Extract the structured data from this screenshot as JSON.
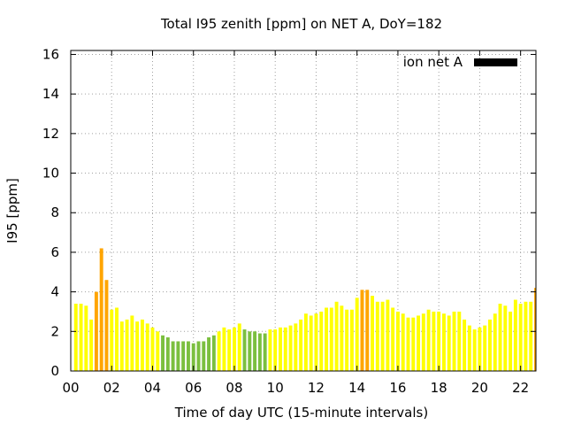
{
  "chart_data": {
    "type": "bar",
    "title": "Total I95 zenith [ppm] on NET A, DoY=182",
    "xlabel": "Time of day UTC (15-minute intervals)",
    "ylabel": "I95 [ppm]",
    "ylim": [
      0,
      16.2
    ],
    "xlim": [
      0,
      22.75
    ],
    "yticks": [
      "0",
      "2",
      "4",
      "6",
      "8",
      "10",
      "12",
      "14",
      "16"
    ],
    "xticks": [
      "00",
      "02",
      "04",
      "06",
      "08",
      "10",
      "12",
      "14",
      "16",
      "18",
      "20",
      "22"
    ],
    "grid": true,
    "legend": {
      "position": "top-right",
      "label": "ion net A",
      "color": "#000000"
    },
    "bar_width_hours": 0.17,
    "colors": {
      "high": "#ffa500",
      "normal": "#ffff00",
      "low": "#7bbf3f"
    },
    "series": [
      {
        "x": [
          0.25,
          0.5,
          0.75,
          1.0,
          1.25,
          1.5,
          1.75,
          2.0,
          2.25,
          2.5,
          2.75,
          3.0,
          3.25,
          3.5,
          3.75,
          4.0,
          4.25,
          4.5,
          4.75,
          5.0,
          5.25,
          5.5,
          5.75,
          6.0,
          6.25,
          6.5,
          6.75,
          7.0,
          7.25,
          7.5,
          7.75,
          8.0,
          8.25,
          8.5,
          8.75,
          9.0,
          9.25,
          9.5,
          9.75,
          10.0,
          10.25,
          10.5,
          10.75,
          11.0,
          11.25,
          11.5,
          11.75,
          12.0,
          12.25,
          12.5,
          12.75,
          13.0,
          13.25,
          13.5,
          13.75,
          14.0,
          14.25,
          14.5,
          14.75,
          15.0,
          15.25,
          15.5,
          15.75,
          16.0,
          16.25,
          16.5,
          16.75,
          17.0,
          17.25,
          17.5,
          17.75,
          18.0,
          18.25,
          18.5,
          18.75,
          19.0,
          19.25,
          19.5,
          19.75,
          20.0,
          20.25,
          20.5,
          20.75,
          21.0,
          21.25,
          21.5,
          21.75,
          22.0,
          22.25,
          22.5,
          22.75
        ],
        "values": [
          3.4,
          3.4,
          3.3,
          2.6,
          4.0,
          6.2,
          4.6,
          3.1,
          3.2,
          2.5,
          2.6,
          2.8,
          2.5,
          2.6,
          2.4,
          2.2,
          2.0,
          1.8,
          1.7,
          1.5,
          1.5,
          1.5,
          1.5,
          1.4,
          1.5,
          1.5,
          1.7,
          1.8,
          2.0,
          2.2,
          2.1,
          2.2,
          2.4,
          2.1,
          2.0,
          2.0,
          1.9,
          1.9,
          2.1,
          2.1,
          2.2,
          2.2,
          2.3,
          2.4,
          2.6,
          2.9,
          2.8,
          2.9,
          3.0,
          3.2,
          3.2,
          3.5,
          3.3,
          3.1,
          3.1,
          3.7,
          4.1,
          4.1,
          3.8,
          3.5,
          3.5,
          3.6,
          3.2,
          3.0,
          2.9,
          2.7,
          2.7,
          2.8,
          2.9,
          3.1,
          3.0,
          3.0,
          2.9,
          2.8,
          3.0,
          3.0,
          2.6,
          2.3,
          2.1,
          2.2,
          2.3,
          2.6,
          2.9,
          3.4,
          3.3,
          3.0,
          3.6,
          3.4,
          3.5,
          3.5,
          4.2
        ],
        "levels": [
          "normal",
          "normal",
          "normal",
          "normal",
          "high",
          "high",
          "high",
          "normal",
          "normal",
          "normal",
          "normal",
          "normal",
          "normal",
          "normal",
          "normal",
          "normal",
          "normal",
          "low",
          "low",
          "low",
          "low",
          "low",
          "low",
          "low",
          "low",
          "low",
          "low",
          "low",
          "normal",
          "normal",
          "normal",
          "normal",
          "normal",
          "low",
          "low",
          "low",
          "low",
          "low",
          "normal",
          "normal",
          "normal",
          "normal",
          "normal",
          "normal",
          "normal",
          "normal",
          "normal",
          "normal",
          "normal",
          "normal",
          "normal",
          "normal",
          "normal",
          "normal",
          "normal",
          "normal",
          "high",
          "high",
          "normal",
          "normal",
          "normal",
          "normal",
          "normal",
          "normal",
          "normal",
          "normal",
          "normal",
          "normal",
          "normal",
          "normal",
          "normal",
          "normal",
          "normal",
          "normal",
          "normal",
          "normal",
          "normal",
          "normal",
          "normal",
          "normal",
          "normal",
          "normal",
          "normal",
          "normal",
          "normal",
          "normal",
          "normal",
          "normal",
          "normal",
          "normal",
          "high"
        ]
      }
    ]
  }
}
